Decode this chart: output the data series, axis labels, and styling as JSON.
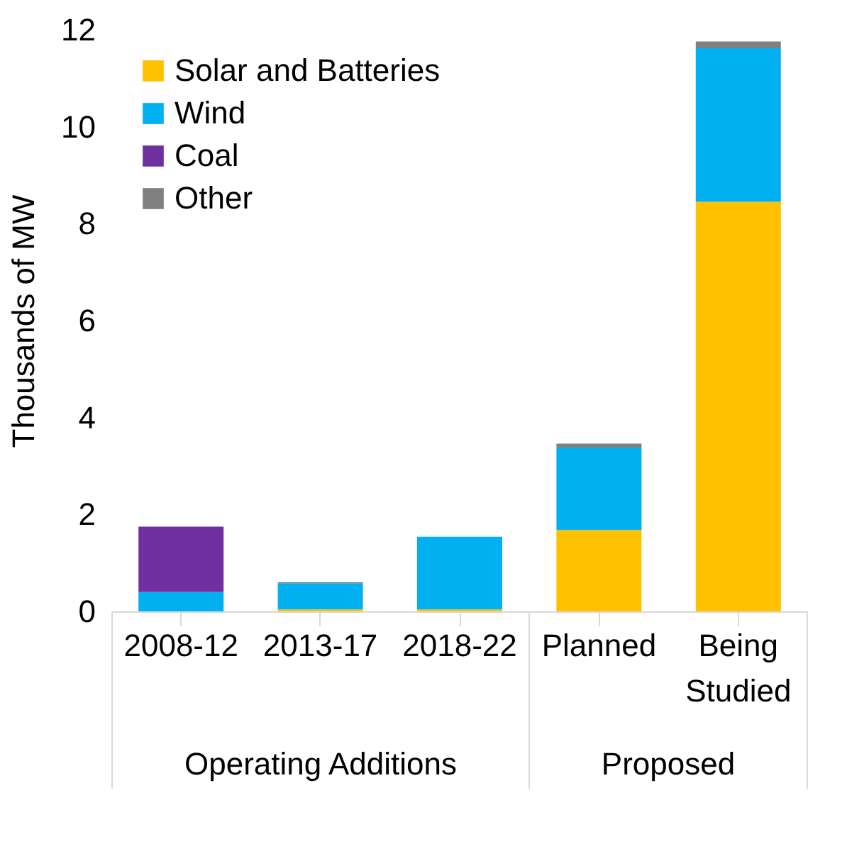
{
  "chart_data": {
    "type": "bar",
    "stacked": true,
    "ylabel": "Thousands of MW",
    "categories": [
      "2008-12",
      "2013-17",
      "2018-22",
      "Planned",
      "Being Studied"
    ],
    "series": [
      {
        "name": "Solar and Batteries",
        "color": "#ffc000",
        "values": [
          0,
          0.04,
          0.04,
          1.68,
          8.45
        ]
      },
      {
        "name": "Wind",
        "color": "#00b0f0",
        "values": [
          0.4,
          0.54,
          1.5,
          1.7,
          3.17
        ]
      },
      {
        "name": "Coal",
        "color": "#7030a0",
        "values": [
          1.35,
          0,
          0,
          0,
          0
        ]
      },
      {
        "name": "Other",
        "color": "#808080",
        "values": [
          0,
          0.02,
          0,
          0.08,
          0.14
        ]
      }
    ],
    "ylim": [
      0,
      12
    ],
    "yticks": [
      0,
      2,
      4,
      6,
      8,
      10,
      12
    ],
    "grid": false,
    "legend": "top left",
    "annotations": [
      "Operating Additions",
      "Proposed"
    ]
  }
}
